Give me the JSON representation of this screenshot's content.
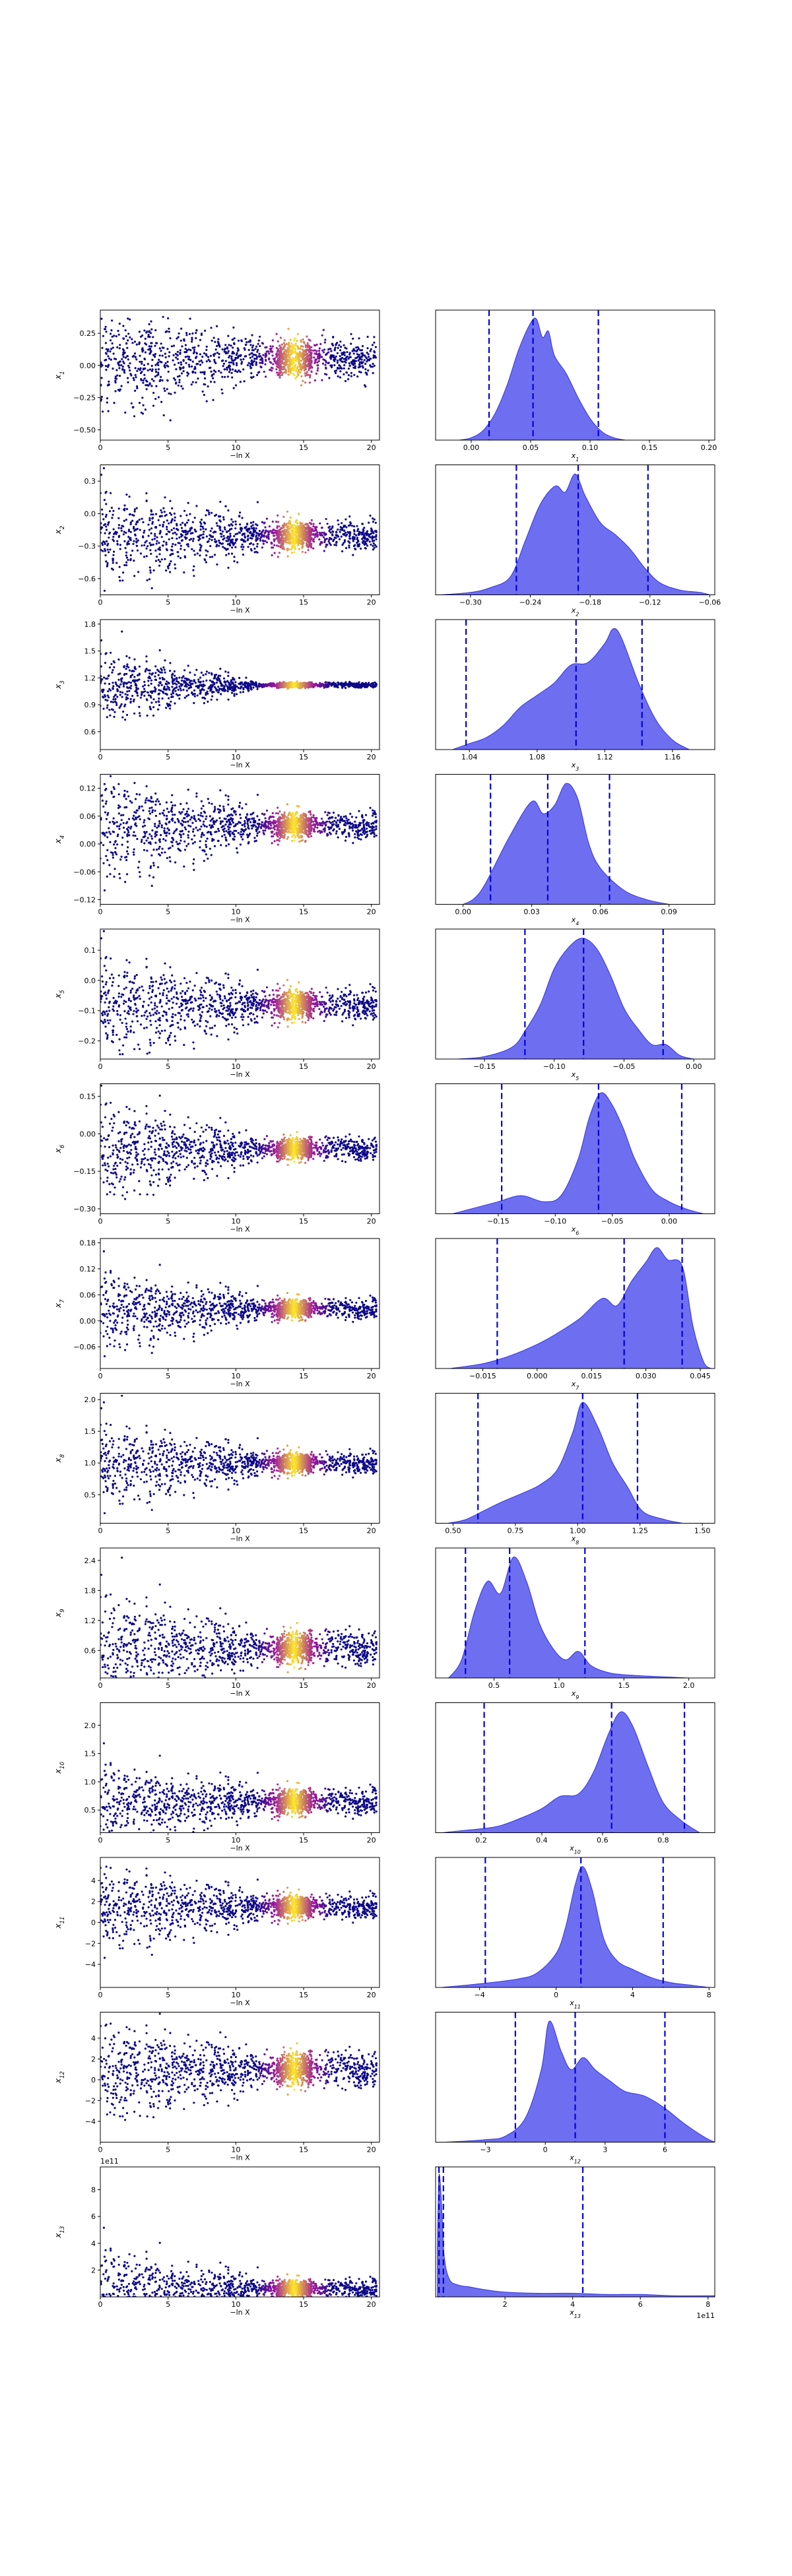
{
  "figure": {
    "scatter_xlabel": "−ln X",
    "scatter_xticks": [
      "0",
      "5",
      "10",
      "15",
      "20"
    ],
    "scatter_xlim": [
      0,
      20.6
    ],
    "colors": {
      "kde_fill": "#6666f0",
      "kde_edge": "#3333dd",
      "quantile_line": "#0000dd",
      "scatter_low": "#0d0887",
      "scatter_mid": "#9c179e",
      "scatter_high": "#fde725"
    },
    "scatter_colormap": "plasma",
    "quantile_lines": "dashed"
  },
  "chart_data": [
    {
      "type": "scatter",
      "param": "x1",
      "ylabel": "x_1",
      "yticks": [
        "−0.50",
        "−0.25",
        "0.00",
        "0.25"
      ],
      "ylim": [
        -0.58,
        0.43
      ],
      "center": 0.05,
      "width": 0.13,
      "spread": 0.22,
      "kde_type": "area",
      "kde_xticks": [
        "0.00",
        "0.05",
        "0.10",
        "0.15",
        "0.20"
      ],
      "kde_xlim": [
        -0.03,
        0.205
      ],
      "kde_xlabel": "x_1",
      "quantiles": [
        0.015,
        0.052,
        0.107
      ],
      "kde_points": [
        [
          -0.01,
          0
        ],
        [
          0.0,
          0.02
        ],
        [
          0.01,
          0.08
        ],
        [
          0.02,
          0.22
        ],
        [
          0.03,
          0.45
        ],
        [
          0.04,
          0.75
        ],
        [
          0.05,
          0.97
        ],
        [
          0.055,
          1.0
        ],
        [
          0.06,
          0.85
        ],
        [
          0.065,
          0.9
        ],
        [
          0.07,
          0.7
        ],
        [
          0.08,
          0.55
        ],
        [
          0.09,
          0.35
        ],
        [
          0.1,
          0.18
        ],
        [
          0.11,
          0.07
        ],
        [
          0.12,
          0.02
        ],
        [
          0.13,
          0
        ]
      ]
    },
    {
      "type": "scatter",
      "param": "x2",
      "ylabel": "x_2",
      "yticks": [
        "−0.6",
        "−0.3",
        "0.0",
        "0.3"
      ],
      "ylim": [
        -0.75,
        0.45
      ],
      "center": -0.2,
      "width": 0.12,
      "spread": 0.3,
      "kde_type": "area",
      "kde_xticks": [
        "−0.30",
        "−0.24",
        "−0.18",
        "−0.12",
        "−0.06"
      ],
      "kde_xlim": [
        -0.335,
        -0.055
      ],
      "kde_xlabel": "x_2",
      "quantiles": [
        -0.254,
        -0.192,
        -0.122
      ],
      "kde_points": [
        [
          -0.33,
          0
        ],
        [
          -0.3,
          0.02
        ],
        [
          -0.28,
          0.06
        ],
        [
          -0.26,
          0.15
        ],
        [
          -0.245,
          0.45
        ],
        [
          -0.23,
          0.75
        ],
        [
          -0.215,
          0.9
        ],
        [
          -0.205,
          0.85
        ],
        [
          -0.195,
          1.0
        ],
        [
          -0.185,
          0.82
        ],
        [
          -0.17,
          0.6
        ],
        [
          -0.155,
          0.5
        ],
        [
          -0.14,
          0.38
        ],
        [
          -0.125,
          0.22
        ],
        [
          -0.11,
          0.1
        ],
        [
          -0.09,
          0.04
        ],
        [
          -0.07,
          0.02
        ],
        [
          -0.06,
          0
        ]
      ]
    },
    {
      "type": "scatter",
      "param": "x3",
      "ylabel": "x_3",
      "yticks": [
        "0.6",
        "0.9",
        "1.2",
        "1.5",
        "1.8"
      ],
      "ylim": [
        0.4,
        1.85
      ],
      "center": 1.12,
      "width": 0.025,
      "spread": 0.35,
      "kde_type": "area",
      "kde_xticks": [
        "1.04",
        "1.08",
        "1.12",
        "1.16"
      ],
      "kde_xlim": [
        1.02,
        1.185
      ],
      "kde_xlabel": "x_3",
      "quantiles": [
        1.038,
        1.103,
        1.142
      ],
      "kde_points": [
        [
          1.03,
          0
        ],
        [
          1.04,
          0.05
        ],
        [
          1.05,
          0.1
        ],
        [
          1.06,
          0.2
        ],
        [
          1.07,
          0.35
        ],
        [
          1.08,
          0.45
        ],
        [
          1.09,
          0.55
        ],
        [
          1.1,
          0.7
        ],
        [
          1.11,
          0.72
        ],
        [
          1.12,
          0.88
        ],
        [
          1.125,
          1.0
        ],
        [
          1.13,
          0.92
        ],
        [
          1.14,
          0.55
        ],
        [
          1.15,
          0.25
        ],
        [
          1.16,
          0.08
        ],
        [
          1.17,
          0
        ]
      ]
    },
    {
      "type": "scatter",
      "param": "x4",
      "ylabel": "x_4",
      "yticks": [
        "−0.12",
        "−0.06",
        "0.00",
        "0.06",
        "0.12"
      ],
      "ylim": [
        -0.13,
        0.15
      ],
      "center": 0.04,
      "width": 0.025,
      "spread": 0.09,
      "kde_type": "area",
      "kde_xticks": [
        "0.00",
        "0.03",
        "0.06",
        "0.09"
      ],
      "kde_xlim": [
        -0.012,
        0.11
      ],
      "kde_xlabel": "x_4",
      "quantiles": [
        0.012,
        0.037,
        0.064
      ],
      "kde_points": [
        [
          0.0,
          0
        ],
        [
          0.005,
          0.05
        ],
        [
          0.01,
          0.18
        ],
        [
          0.02,
          0.55
        ],
        [
          0.03,
          0.85
        ],
        [
          0.035,
          0.75
        ],
        [
          0.04,
          0.82
        ],
        [
          0.045,
          1.0
        ],
        [
          0.05,
          0.88
        ],
        [
          0.055,
          0.5
        ],
        [
          0.06,
          0.3
        ],
        [
          0.07,
          0.12
        ],
        [
          0.08,
          0.04
        ],
        [
          0.09,
          0
        ]
      ]
    },
    {
      "type": "scatter",
      "param": "x5",
      "ylabel": "x_5",
      "yticks": [
        "−0.2",
        "−0.1",
        "0.0",
        "0.1"
      ],
      "ylim": [
        -0.26,
        0.17
      ],
      "center": -0.08,
      "width": 0.045,
      "spread": 0.12,
      "kde_type": "area",
      "kde_xticks": [
        "−0.15",
        "−0.10",
        "−0.05",
        "0.00"
      ],
      "kde_xlim": [
        -0.185,
        0.015
      ],
      "kde_xlabel": "x_5",
      "quantiles": [
        -0.121,
        -0.079,
        -0.022
      ],
      "kde_points": [
        [
          -0.17,
          0
        ],
        [
          -0.15,
          0.02
        ],
        [
          -0.13,
          0.1
        ],
        [
          -0.12,
          0.25
        ],
        [
          -0.11,
          0.45
        ],
        [
          -0.1,
          0.75
        ],
        [
          -0.09,
          0.92
        ],
        [
          -0.08,
          1.0
        ],
        [
          -0.07,
          0.92
        ],
        [
          -0.06,
          0.7
        ],
        [
          -0.05,
          0.42
        ],
        [
          -0.04,
          0.25
        ],
        [
          -0.03,
          0.12
        ],
        [
          -0.02,
          0.12
        ],
        [
          -0.01,
          0.03
        ],
        [
          0.0,
          0
        ]
      ]
    },
    {
      "type": "scatter",
      "param": "x6",
      "ylabel": "x_6",
      "yticks": [
        "−0.30",
        "−0.15",
        "0.00",
        "0.15"
      ],
      "ylim": [
        -0.32,
        0.2
      ],
      "center": -0.06,
      "width": 0.04,
      "spread": 0.15,
      "kde_type": "area",
      "kde_xticks": [
        "−0.15",
        "−0.10",
        "−0.05",
        "0.00"
      ],
      "kde_xlim": [
        -0.205,
        0.04
      ],
      "kde_xlabel": "x_6",
      "quantiles": [
        -0.147,
        -0.062,
        0.011
      ],
      "kde_points": [
        [
          -0.19,
          0
        ],
        [
          -0.17,
          0.05
        ],
        [
          -0.15,
          0.1
        ],
        [
          -0.13,
          0.15
        ],
        [
          -0.11,
          0.1
        ],
        [
          -0.095,
          0.15
        ],
        [
          -0.08,
          0.45
        ],
        [
          -0.07,
          0.8
        ],
        [
          -0.06,
          1.0
        ],
        [
          -0.05,
          0.9
        ],
        [
          -0.04,
          0.7
        ],
        [
          -0.03,
          0.45
        ],
        [
          -0.015,
          0.2
        ],
        [
          0.0,
          0.1
        ],
        [
          0.015,
          0.04
        ],
        [
          0.03,
          0
        ]
      ]
    },
    {
      "type": "scatter",
      "param": "x7",
      "ylabel": "x_7",
      "yticks": [
        "−0.06",
        "0.00",
        "0.06",
        "0.12",
        "0.18"
      ],
      "ylim": [
        -0.11,
        0.19
      ],
      "center": 0.028,
      "width": 0.02,
      "spread": 0.07,
      "kde_type": "area",
      "kde_xticks": [
        "−0.015",
        "0.000",
        "0.015",
        "0.030",
        "0.045"
      ],
      "kde_xlim": [
        -0.028,
        0.049
      ],
      "kde_xlabel": "x_7",
      "quantiles": [
        -0.011,
        0.024,
        0.04
      ],
      "kde_points": [
        [
          -0.024,
          0
        ],
        [
          -0.015,
          0.04
        ],
        [
          -0.008,
          0.1
        ],
        [
          0.0,
          0.2
        ],
        [
          0.006,
          0.3
        ],
        [
          0.012,
          0.42
        ],
        [
          0.018,
          0.58
        ],
        [
          0.022,
          0.52
        ],
        [
          0.026,
          0.72
        ],
        [
          0.03,
          0.88
        ],
        [
          0.033,
          1.0
        ],
        [
          0.036,
          0.9
        ],
        [
          0.04,
          0.85
        ],
        [
          0.043,
          0.35
        ],
        [
          0.046,
          0.05
        ],
        [
          0.048,
          0
        ]
      ]
    },
    {
      "type": "scatter",
      "param": "x8",
      "ylabel": "x_8",
      "yticks": [
        "0.5",
        "1.0",
        "1.5",
        "2.0"
      ],
      "ylim": [
        0.05,
        2.1
      ],
      "center": 1.0,
      "width": 0.15,
      "spread": 0.5,
      "kde_type": "area",
      "kde_xticks": [
        "0.50",
        "0.75",
        "1.00",
        "1.25",
        "1.50"
      ],
      "kde_xlim": [
        0.43,
        1.55
      ],
      "kde_xlabel": "x_8",
      "quantiles": [
        0.6,
        1.02,
        1.24
      ],
      "kde_points": [
        [
          0.48,
          0
        ],
        [
          0.55,
          0.03
        ],
        [
          0.62,
          0.1
        ],
        [
          0.7,
          0.18
        ],
        [
          0.78,
          0.25
        ],
        [
          0.85,
          0.32
        ],
        [
          0.92,
          0.45
        ],
        [
          0.98,
          0.75
        ],
        [
          1.02,
          1.0
        ],
        [
          1.08,
          0.8
        ],
        [
          1.14,
          0.5
        ],
        [
          1.2,
          0.3
        ],
        [
          1.26,
          0.1
        ],
        [
          1.35,
          0.03
        ],
        [
          1.42,
          0
        ]
      ]
    },
    {
      "type": "scatter",
      "param": "x9",
      "ylabel": "x_9",
      "yticks": [
        "0.6",
        "1.2",
        "1.8",
        "2.4"
      ],
      "ylim": [
        0.05,
        2.65
      ],
      "center": 0.65,
      "width": 0.3,
      "spread": 0.8,
      "kde_type": "area",
      "kde_xticks": [
        "0.5",
        "1.0",
        "1.5",
        "2.0"
      ],
      "kde_xlim": [
        0.05,
        2.2
      ],
      "kde_xlabel": "x_9",
      "quantiles": [
        0.28,
        0.62,
        1.2
      ],
      "kde_points": [
        [
          0.15,
          0
        ],
        [
          0.25,
          0.15
        ],
        [
          0.35,
          0.55
        ],
        [
          0.45,
          0.8
        ],
        [
          0.55,
          0.7
        ],
        [
          0.65,
          1.0
        ],
        [
          0.75,
          0.8
        ],
        [
          0.85,
          0.45
        ],
        [
          0.95,
          0.25
        ],
        [
          1.05,
          0.15
        ],
        [
          1.15,
          0.22
        ],
        [
          1.25,
          0.1
        ],
        [
          1.4,
          0.04
        ],
        [
          1.6,
          0.02
        ],
        [
          1.8,
          0.01
        ],
        [
          2.0,
          0
        ]
      ]
    },
    {
      "type": "scatter",
      "param": "x10",
      "ylabel": "x_{10}",
      "yticks": [
        "0.5",
        "1.0",
        "1.5",
        "2.0"
      ],
      "ylim": [
        0.1,
        2.4
      ],
      "center": 0.65,
      "width": 0.2,
      "spread": 0.5,
      "kde_type": "area",
      "kde_xticks": [
        "0.2",
        "0.4",
        "0.6",
        "0.8"
      ],
      "kde_xlim": [
        0.05,
        0.97
      ],
      "kde_xlabel": "x_{10}",
      "quantiles": [
        0.21,
        0.63,
        0.87
      ],
      "kde_points": [
        [
          0.07,
          0
        ],
        [
          0.15,
          0.02
        ],
        [
          0.25,
          0.05
        ],
        [
          0.33,
          0.12
        ],
        [
          0.4,
          0.2
        ],
        [
          0.46,
          0.3
        ],
        [
          0.52,
          0.32
        ],
        [
          0.57,
          0.5
        ],
        [
          0.62,
          0.82
        ],
        [
          0.66,
          1.0
        ],
        [
          0.7,
          0.88
        ],
        [
          0.75,
          0.55
        ],
        [
          0.8,
          0.25
        ],
        [
          0.86,
          0.1
        ],
        [
          0.92,
          0
        ]
      ]
    },
    {
      "type": "scatter",
      "param": "x11",
      "ylabel": "x_{11}",
      "yticks": [
        "−4",
        "−2",
        "0",
        "2",
        "4"
      ],
      "ylim": [
        -6.2,
        6.2
      ],
      "center": 1.5,
      "width": 1.0,
      "spread": 3.0,
      "kde_type": "area",
      "kde_xticks": [
        "−4",
        "0",
        "4",
        "8"
      ],
      "kde_xlim": [
        -6.3,
        8.3
      ],
      "kde_xlabel": "x_{11}",
      "quantiles": [
        -3.7,
        1.3,
        5.6
      ],
      "kde_points": [
        [
          -6,
          0
        ],
        [
          -4,
          0.03
        ],
        [
          -2,
          0.07
        ],
        [
          -1,
          0.12
        ],
        [
          0,
          0.28
        ],
        [
          0.5,
          0.5
        ],
        [
          1,
          0.85
        ],
        [
          1.4,
          1.0
        ],
        [
          1.9,
          0.8
        ],
        [
          2.5,
          0.4
        ],
        [
          3.2,
          0.22
        ],
        [
          4,
          0.15
        ],
        [
          5,
          0.08
        ],
        [
          6,
          0.04
        ],
        [
          7,
          0.02
        ],
        [
          8,
          0
        ]
      ]
    },
    {
      "type": "scatter",
      "param": "x12",
      "ylabel": "x_{12}",
      "yticks": [
        "−4",
        "−2",
        "0",
        "2",
        "4"
      ],
      "ylim": [
        -6,
        6.5
      ],
      "center": 1.0,
      "width": 1.5,
      "spread": 3.0,
      "kde_type": "area",
      "kde_xticks": [
        "−3",
        "0",
        "3",
        "6"
      ],
      "kde_xlim": [
        -5.5,
        8.5
      ],
      "kde_xlabel": "x_{12}",
      "quantiles": [
        -1.5,
        1.5,
        6.0
      ],
      "kde_points": [
        [
          -5,
          0
        ],
        [
          -3,
          0.02
        ],
        [
          -2,
          0.05
        ],
        [
          -1,
          0.2
        ],
        [
          -0.2,
          0.6
        ],
        [
          0.2,
          1.0
        ],
        [
          0.8,
          0.75
        ],
        [
          1.3,
          0.6
        ],
        [
          1.9,
          0.7
        ],
        [
          2.5,
          0.6
        ],
        [
          3.3,
          0.5
        ],
        [
          4,
          0.42
        ],
        [
          5,
          0.38
        ],
        [
          6,
          0.28
        ],
        [
          7,
          0.15
        ],
        [
          8,
          0.04
        ],
        [
          8.5,
          0
        ]
      ]
    },
    {
      "type": "scatter",
      "param": "x13",
      "ylabel": "x_{13}",
      "yticks": [
        "2",
        "4",
        "6",
        "8"
      ],
      "ylim": [
        0,
        9.7
      ],
      "yoffset": "1e11",
      "center": 0.6,
      "width": 0.6,
      "spread": 2.5,
      "kde_type": "area",
      "kde_xticks": [
        "2",
        "4",
        "6",
        "8"
      ],
      "kde_xlim": [
        -0.05,
        8.2
      ],
      "kde_xoffset": "1e11",
      "kde_xlabel": "x_{13}",
      "quantiles": [
        0.05,
        0.18,
        4.3
      ],
      "kde_points": [
        [
          0.0,
          0.4
        ],
        [
          0.05,
          1.0
        ],
        [
          0.12,
          0.8
        ],
        [
          0.2,
          0.35
        ],
        [
          0.35,
          0.15
        ],
        [
          0.6,
          0.1
        ],
        [
          1.0,
          0.08
        ],
        [
          1.4,
          0.06
        ],
        [
          2,
          0.04
        ],
        [
          3,
          0.03
        ],
        [
          4,
          0.03
        ],
        [
          5,
          0.02
        ],
        [
          6,
          0.02
        ],
        [
          7,
          0.01
        ],
        [
          8.2,
          0.01
        ]
      ]
    }
  ]
}
